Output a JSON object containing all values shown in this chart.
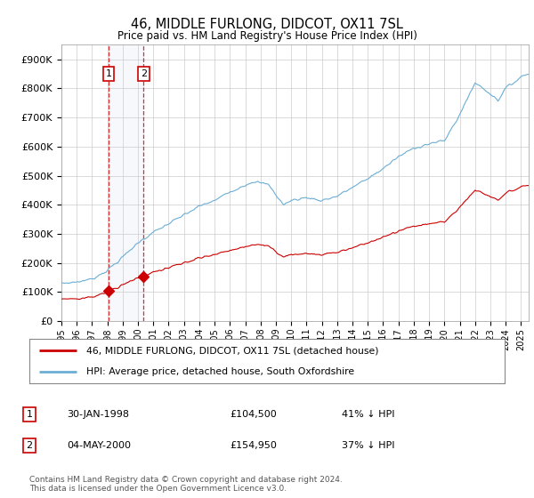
{
  "title": "46, MIDDLE FURLONG, DIDCOT, OX11 7SL",
  "subtitle": "Price paid vs. HM Land Registry's House Price Index (HPI)",
  "legend_line1": "46, MIDDLE FURLONG, DIDCOT, OX11 7SL (detached house)",
  "legend_line2": "HPI: Average price, detached house, South Oxfordshire",
  "footnote": "Contains HM Land Registry data © Crown copyright and database right 2024.\nThis data is licensed under the Open Government Licence v3.0.",
  "sale1_date": "30-JAN-1998",
  "sale1_price": "£104,500",
  "sale1_hpi": "41% ↓ HPI",
  "sale2_date": "04-MAY-2000",
  "sale2_price": "£154,950",
  "sale2_hpi": "37% ↓ HPI",
  "sale1_x": 1998.08,
  "sale1_y": 104500,
  "sale2_x": 2000.37,
  "sale2_y": 154950,
  "hpi_color": "#6baed6",
  "price_color": "#cc0000",
  "background_color": "#ffffff",
  "grid_color": "#cccccc",
  "xlim": [
    1995.0,
    2025.5
  ],
  "ylim": [
    0,
    950000
  ],
  "yticks": [
    0,
    100000,
    200000,
    300000,
    400000,
    500000,
    600000,
    700000,
    800000,
    900000
  ],
  "ytick_labels": [
    "£0",
    "£100K",
    "£200K",
    "£300K",
    "£400K",
    "£500K",
    "£600K",
    "£700K",
    "£800K",
    "£900K"
  ],
  "xticks": [
    1995,
    1996,
    1997,
    1998,
    1999,
    2000,
    2001,
    2002,
    2003,
    2004,
    2005,
    2006,
    2007,
    2008,
    2009,
    2010,
    2011,
    2012,
    2013,
    2014,
    2015,
    2016,
    2017,
    2018,
    2019,
    2020,
    2021,
    2022,
    2023,
    2024,
    2025
  ]
}
